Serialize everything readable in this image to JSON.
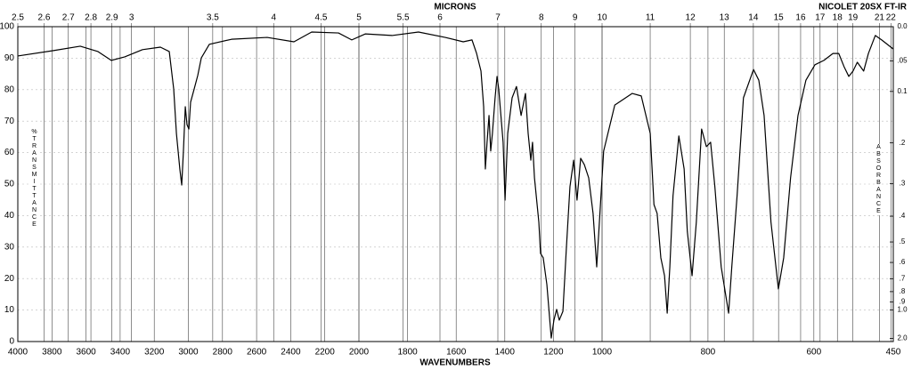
{
  "chart_data": {
    "type": "line",
    "title": "NICOLET 20SX FT-IR",
    "xlabel": "WAVENUMBERS",
    "x2label": "MICRONS",
    "ylabel": "%TRANSMITTANCE",
    "y2label": "ABSORBANCE",
    "color": "#000000",
    "grid": true,
    "xlim": [
      4000,
      450
    ],
    "xscale_breaks": [
      2000,
      1000
    ],
    "xticks": [
      4000,
      3800,
      3600,
      3400,
      3200,
      3000,
      2800,
      2600,
      2400,
      2200,
      2000,
      1800,
      1600,
      1400,
      1200,
      1000,
      800,
      600,
      450
    ],
    "x2scale": "microns",
    "x2ticks": [
      2.5,
      2.6,
      2.7,
      2.8,
      2.9,
      3,
      3.5,
      4,
      4.5,
      5,
      5.5,
      6,
      7,
      8,
      9,
      10,
      11,
      12,
      13,
      14,
      15,
      16,
      17,
      18,
      19,
      21,
      22
    ],
    "ylim": [
      0,
      100
    ],
    "yticks": [
      0,
      10,
      20,
      30,
      40,
      50,
      60,
      70,
      80,
      90,
      100
    ],
    "y2scale": "absorbance",
    "y2ticks": [
      {
        "value": 0,
        "label": "0.0"
      },
      {
        "value": 0.05,
        "label": ".05"
      },
      0.1,
      {
        "value": 0.2,
        "label": ".2"
      },
      {
        "value": 0.3,
        "label": ".3"
      },
      {
        "value": 0.4,
        "label": ".4"
      },
      {
        "value": 0.5,
        "label": ".5"
      },
      {
        "value": 0.6,
        "label": ".6"
      },
      {
        "value": 0.7,
        "label": ".7"
      },
      {
        "value": 0.8,
        "label": ".8"
      },
      {
        "value": 0.9,
        "label": ".9"
      },
      {
        "value": 1,
        "label": "1.0"
      },
      {
        "value": 2,
        "label": "2.0"
      }
    ],
    "x": [
      4000,
      3791,
      3634,
      3530,
      3452,
      3373,
      3269,
      3164,
      3112,
      3086,
      3070,
      3050,
      3039,
      3029,
      3018,
      3008,
      2997,
      2987,
      2966,
      2945,
      2924,
      2877,
      2747,
      2538,
      2381,
      2277,
      2120,
      2042,
      1974,
      1864,
      1755,
      1645,
      1571,
      1535,
      1516,
      1498,
      1487,
      1480,
      1473,
      1465,
      1458,
      1451,
      1440,
      1432,
      1425,
      1407,
      1399,
      1388,
      1370,
      1352,
      1333,
      1315,
      1304,
      1293,
      1286,
      1278,
      1260,
      1253,
      1242,
      1227,
      1209,
      1198,
      1187,
      1176,
      1161,
      1147,
      1132,
      1117,
      1103,
      1088,
      1073,
      1055,
      1037,
      1022,
      1011,
      997,
      976,
      943,
      926,
      909,
      902,
      896,
      889,
      882,
      877,
      872,
      866,
      855,
      845,
      839,
      830,
      822,
      812,
      803,
      795,
      787,
      775,
      761,
      755,
      745,
      733,
      714,
      704,
      694,
      681,
      667,
      657,
      644,
      630,
      615,
      598,
      581,
      564,
      553,
      543,
      534,
      526,
      518,
      506,
      497,
      484,
      472,
      450
    ],
    "values": [
      90.7,
      92.4,
      93.8,
      92.1,
      89.3,
      90.4,
      92.7,
      93.5,
      92.1,
      80.2,
      66.1,
      54.8,
      49.7,
      60.5,
      74.6,
      68.9,
      67.5,
      76,
      80.2,
      84.5,
      90.1,
      94.4,
      96,
      96.6,
      95.2,
      98.3,
      98,
      95.8,
      97.7,
      97.2,
      98.3,
      96.6,
      95.2,
      95.8,
      91.5,
      85.9,
      74.6,
      54.8,
      63.3,
      71.8,
      60.5,
      66.1,
      77.4,
      84.2,
      80.2,
      63.3,
      44.9,
      66.1,
      77.4,
      81,
      71.8,
      78.8,
      66.1,
      57.6,
      63.3,
      52,
      37.9,
      28,
      26.6,
      18.1,
      1.1,
      6.8,
      10.2,
      6.8,
      9.6,
      29.4,
      49.2,
      57.6,
      44.9,
      58.2,
      56.2,
      52,
      40.7,
      23.7,
      37.9,
      60.5,
      75.1,
      78.8,
      78,
      66.1,
      43.5,
      40.7,
      26.6,
      20.9,
      9,
      23.7,
      46.3,
      65.3,
      54.8,
      35,
      20.9,
      37.9,
      67.5,
      61.9,
      63.3,
      49.2,
      23.7,
      9,
      23.7,
      46.3,
      77.4,
      86.4,
      83,
      71.8,
      37.9,
      16.7,
      26.6,
      52,
      71.8,
      83,
      87.9,
      89.3,
      91.5,
      91.5,
      87.3,
      84.2,
      85.9,
      88.7,
      85.9,
      91.5,
      97.2,
      95.8,
      92.9
    ]
  }
}
